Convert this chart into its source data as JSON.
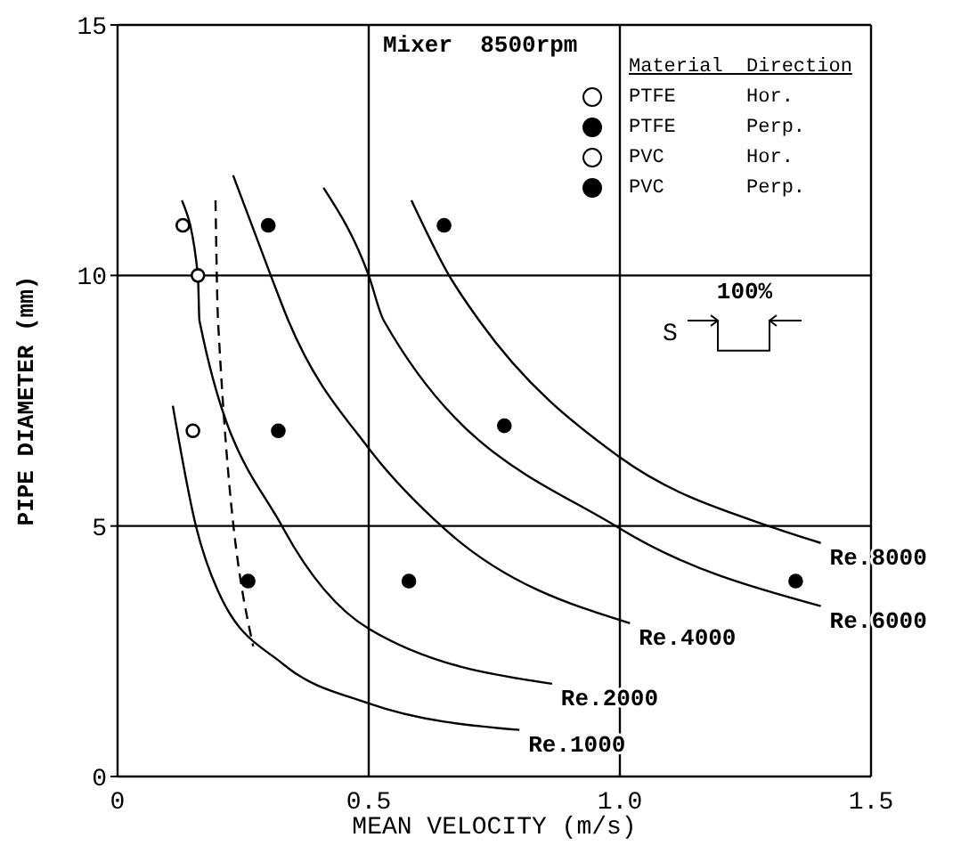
{
  "chart_data": {
    "type": "line",
    "xlabel": "MEAN VELOCITY (m/s)",
    "ylabel": "PIPE DIAMETER (mm)",
    "xlim": [
      0,
      1.5
    ],
    "xticks": [
      0,
      0.5,
      {
        "value": 1,
        "label": "1.0"
      },
      1.5
    ],
    "ylim": [
      0,
      15
    ],
    "yticks": [
      0,
      5,
      10,
      15
    ],
    "grid": true,
    "legend": "top right",
    "legend_title": "Material  Direction",
    "annotations": [
      "Mixer  8500rpm",
      "S",
      "100%"
    ],
    "series": [
      {
        "name": "Re.1000",
        "color": "#000000",
        "x": [
          0.11,
          0.156,
          0.2,
          0.33,
          0.5,
          0.8
        ],
        "values": [
          7.4,
          5,
          3.7,
          2.24,
          1.46,
          0.93
        ]
      },
      {
        "name": "Re.2000",
        "color": "#000000",
        "x": [
          0.128,
          0.16,
          0.163,
          0.33,
          0.5,
          0.865
        ],
        "values": [
          11.5,
          10,
          9.1,
          4.95,
          2.95,
          1.85
        ]
      },
      {
        "name": "Re.4000",
        "color": "#000000",
        "x": [
          0.23,
          0.305,
          0.34,
          0.5,
          0.65,
          1.02
        ],
        "values": [
          12,
          10,
          9.1,
          6.55,
          4.95,
          3.06
        ]
      },
      {
        "name": "Re.6000",
        "color": "#000000",
        "x": [
          0.41,
          0.5,
          0.53,
          1,
          1.4
        ],
        "values": [
          11.75,
          10,
          9.1,
          4.95,
          3.4
        ]
      },
      {
        "name": "Re.8000",
        "color": "#000000",
        "x": [
          0.585,
          0.66,
          0.72,
          1,
          1.31,
          1.4
        ],
        "values": [
          11.5,
          10,
          9.1,
          6.37,
          4.95,
          4.66
        ]
      },
      {
        "color": "#000000",
        "line_style": "dashed",
        "x": [
          0.195,
          0.2,
          0.27
        ],
        "values": [
          11.5,
          9.1,
          2.6
        ]
      },
      {
        "name": "PTFE      Hor.",
        "type": "scatter",
        "marker": "circle",
        "color": "#ffffff",
        "x": [
          0.13,
          0.15
        ],
        "values": [
          11,
          6.9
        ]
      },
      {
        "name": "PTFE      Perp.",
        "type": "scatter",
        "marker": "circle",
        "color": "#000000",
        "x": [
          0.3,
          0.65,
          0.32,
          0.77,
          0.58,
          1.35
        ],
        "values": [
          11,
          11,
          6.9,
          7,
          3.9,
          3.9
        ]
      },
      {
        "name": "PVC       Hor.",
        "type": "scatter",
        "marker": "circle",
        "color": "#ffffff",
        "x": [
          0.16
        ],
        "values": [
          10
        ]
      },
      {
        "name": "PVC       Perp.",
        "type": "scatter",
        "marker": "circle",
        "color": "#000000",
        "x": [
          0.26
        ],
        "values": [
          3.9
        ]
      }
    ]
  }
}
